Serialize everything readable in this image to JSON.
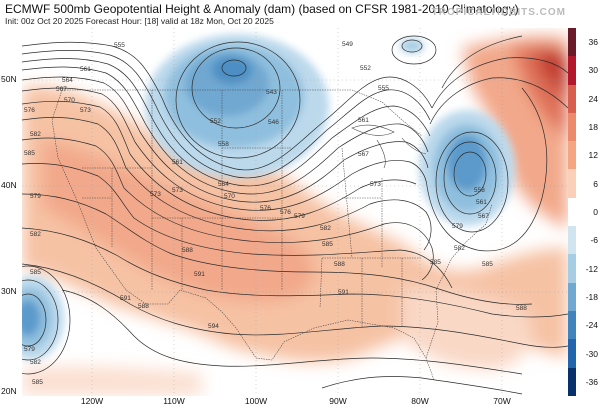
{
  "header": {
    "title": "ECMWF 500mb Geopotential Height & Anomaly (dam) (based on CFSR 1981-2010 Climatology)",
    "subtitle": "Init: 00z Oct 20 2025   Forecast Hour: [18]   valid at 18z Mon, Oct 20 2025",
    "brand": "TROPICALTIDBITS.COM"
  },
  "axes": {
    "lat_labels": [
      "50N",
      "40N",
      "30N",
      "20N"
    ],
    "lon_labels": [
      "120W",
      "110W",
      "100W",
      "90W",
      "80W",
      "70W"
    ]
  },
  "colorbar": {
    "labels": [
      "36",
      "30",
      "24",
      "18",
      "12",
      "6",
      "0",
      "-6",
      "-12",
      "-18",
      "-24",
      "-30",
      "-36"
    ],
    "colors": [
      "#6a1b2a",
      "#b2182b",
      "#d6604d",
      "#ec8a6c",
      "#f4a582",
      "#fbd0b9",
      "#ffffff",
      "#d1e5f0",
      "#a6cde3",
      "#6fa8d1",
      "#4183bd",
      "#2166ac",
      "#08306b"
    ]
  },
  "contour_labels": [
    {
      "text": "555"
    },
    {
      "text": "561"
    },
    {
      "text": "564"
    },
    {
      "text": "567"
    },
    {
      "text": "570"
    },
    {
      "text": "576"
    },
    {
      "text": "573"
    },
    {
      "text": "582"
    },
    {
      "text": "585"
    },
    {
      "text": "549"
    },
    {
      "text": "552"
    },
    {
      "text": "555"
    },
    {
      "text": "561"
    },
    {
      "text": "567"
    },
    {
      "text": "573"
    },
    {
      "text": "543"
    },
    {
      "text": "546"
    },
    {
      "text": "552"
    },
    {
      "text": "558"
    },
    {
      "text": "561"
    },
    {
      "text": "564"
    },
    {
      "text": "570"
    },
    {
      "text": "573"
    },
    {
      "text": "576"
    },
    {
      "text": "579"
    },
    {
      "text": "582"
    },
    {
      "text": "585"
    },
    {
      "text": "588"
    },
    {
      "text": "591"
    },
    {
      "text": "588"
    },
    {
      "text": "591"
    },
    {
      "text": "594"
    },
    {
      "text": "591"
    },
    {
      "text": "573"
    },
    {
      "text": "579"
    },
    {
      "text": "582"
    },
    {
      "text": "585"
    },
    {
      "text": "588"
    },
    {
      "text": "576"
    },
    {
      "text": "585"
    },
    {
      "text": "558"
    },
    {
      "text": "561"
    },
    {
      "text": "567"
    },
    {
      "text": "579"
    },
    {
      "text": "582"
    },
    {
      "text": "585"
    },
    {
      "text": "588"
    },
    {
      "text": "579"
    },
    {
      "text": "582"
    },
    {
      "text": "585"
    }
  ]
}
